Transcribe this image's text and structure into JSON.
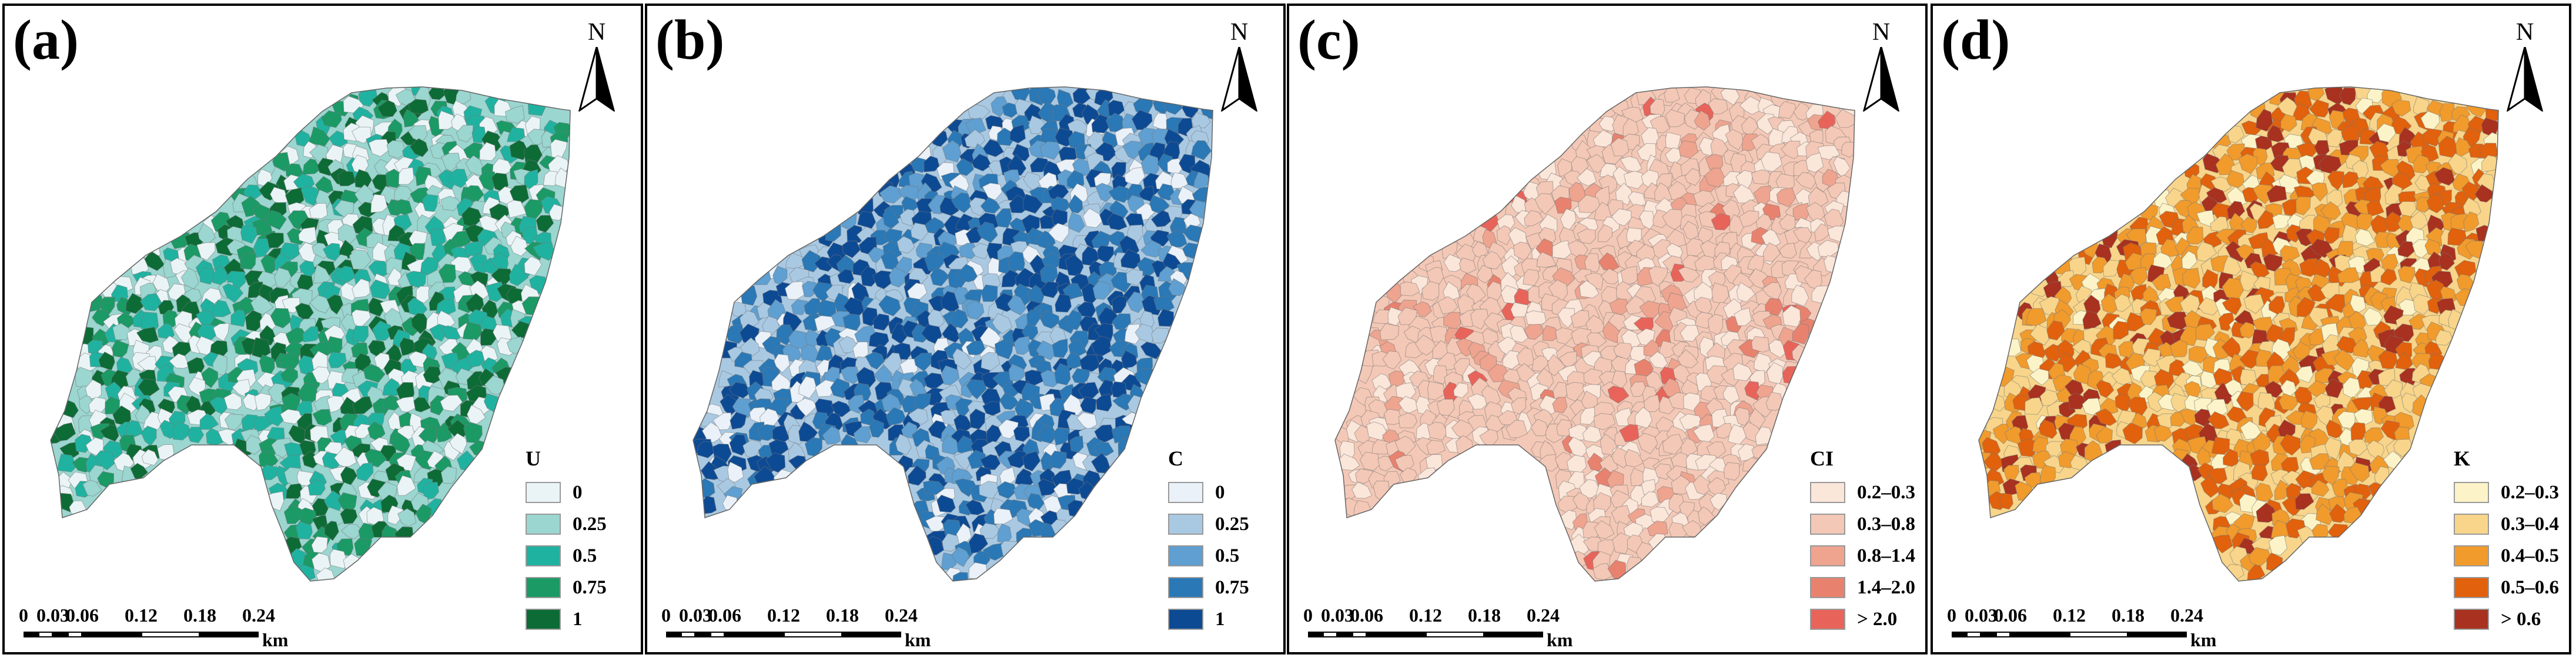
{
  "panels": [
    {
      "label": "(a)",
      "north": "N",
      "legend_title": "U",
      "legend": [
        {
          "label": "0",
          "color": "#eaf4f6"
        },
        {
          "label": "0.25",
          "color": "#9bd6d0"
        },
        {
          "label": "0.5",
          "color": "#20b2a0"
        },
        {
          "label": "0.75",
          "color": "#1b9a66"
        },
        {
          "label": "1",
          "color": "#0d6b36"
        }
      ],
      "scale": {
        "ticks": [
          "0",
          "0.03",
          "0.06",
          "0.12",
          "0.18",
          "0.24"
        ],
        "unit": "km"
      }
    },
    {
      "label": "(b)",
      "north": "N",
      "legend_title": "C",
      "legend": [
        {
          "label": "0",
          "color": "#eaf1f8"
        },
        {
          "label": "0.25",
          "color": "#a9c9e3"
        },
        {
          "label": "0.5",
          "color": "#5f9fd1"
        },
        {
          "label": "0.75",
          "color": "#2a78b6"
        },
        {
          "label": "1",
          "color": "#0d4a94"
        }
      ],
      "scale": {
        "ticks": [
          "0",
          "0.03",
          "0.06",
          "0.12",
          "0.18",
          "0.24"
        ],
        "unit": "km"
      }
    },
    {
      "label": "(c)",
      "north": "N",
      "legend_title": "CI",
      "legend": [
        {
          "label": "0.2–0.3",
          "color": "#fbe6da"
        },
        {
          "label": "0.3–0.8",
          "color": "#f4c8b6"
        },
        {
          "label": "0.8–1.4",
          "color": "#eea48f"
        },
        {
          "label": "1.4–2.0",
          "color": "#e8826e"
        },
        {
          "label": "> 2.0",
          "color": "#e8645a"
        }
      ],
      "scale": {
        "ticks": [
          "0",
          "0.03",
          "0.06",
          "0.12",
          "0.18",
          "0.24"
        ],
        "unit": "km"
      }
    },
    {
      "label": "(d)",
      "north": "N",
      "legend_title": "K",
      "legend": [
        {
          "label": "0.2–0.3",
          "color": "#fcf4c8"
        },
        {
          "label": "0.3–0.4",
          "color": "#f8d58a"
        },
        {
          "label": "0.4–0.5",
          "color": "#f19b2c"
        },
        {
          "label": "0.5–0.6",
          "color": "#e1610c"
        },
        {
          "label": "> 0.6",
          "color": "#a8311f"
        }
      ],
      "scale": {
        "ticks": [
          "0",
          "0.03",
          "0.06",
          "0.12",
          "0.18",
          "0.24"
        ],
        "unit": "km"
      }
    }
  ]
}
